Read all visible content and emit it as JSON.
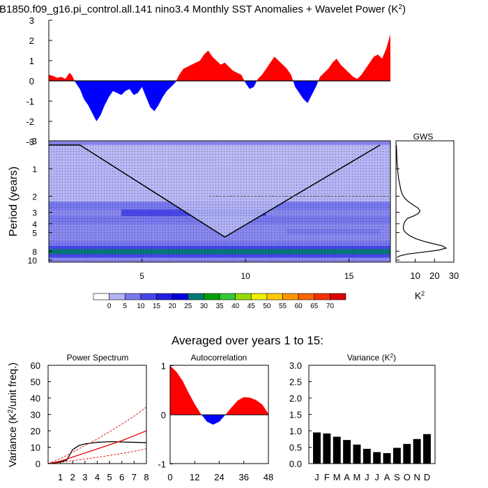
{
  "title": "B1850.f09_g16.pi_control.all.141 nino3.4 Monthly SST Anomalies + Wavelet Power (K",
  "title_sup": "2",
  "title_close": ")",
  "averaged_label": "Averaged over years 1 to 15:",
  "chart_data": [
    {
      "id": "sst_anomalies",
      "type": "area",
      "title": "nino3.4 Monthly SST Anomalies",
      "xlim": [
        0.5,
        17
      ],
      "ylim": [
        -3,
        3
      ],
      "yticks": [
        "3",
        "2",
        "1",
        "0",
        "-1",
        "-2",
        "-3"
      ],
      "colors": {
        "positive": "#ff0000",
        "negative": "#0000ff"
      },
      "x": [
        0.5,
        0.7,
        0.9,
        1.1,
        1.3,
        1.5,
        1.6,
        1.8,
        2.0,
        2.2,
        2.4,
        2.6,
        2.8,
        3.0,
        3.2,
        3.4,
        3.6,
        3.8,
        4.0,
        4.2,
        4.4,
        4.6,
        4.8,
        5.0,
        5.2,
        5.4,
        5.6,
        5.8,
        6.0,
        6.2,
        6.4,
        6.6,
        6.8,
        7.0,
        7.2,
        7.4,
        7.6,
        7.8,
        8.0,
        8.2,
        8.4,
        8.6,
        8.8,
        9.0,
        9.2,
        9.4,
        9.6,
        9.8,
        10.0,
        10.2,
        10.4,
        10.6,
        10.8,
        11.0,
        11.2,
        11.4,
        11.6,
        11.8,
        12.0,
        12.2,
        12.4,
        12.6,
        12.8,
        13.0,
        13.2,
        13.4,
        13.6,
        13.8,
        14.0,
        14.2,
        14.4,
        14.6,
        14.8,
        15.0,
        15.2,
        15.4,
        15.6,
        15.8,
        16.0,
        16.2,
        16.4,
        16.6,
        16.8,
        17.0
      ],
      "values": [
        0.3,
        0.25,
        0.15,
        0.2,
        0.1,
        0.4,
        0.3,
        -0.1,
        -0.4,
        -0.9,
        -1.2,
        -1.6,
        -2.0,
        -1.7,
        -1.2,
        -0.8,
        -0.5,
        -0.6,
        -0.7,
        -0.5,
        -0.4,
        -0.7,
        -0.6,
        -0.3,
        -0.8,
        -1.3,
        -1.5,
        -1.2,
        -0.8,
        -0.5,
        -0.3,
        -0.1,
        0.3,
        0.6,
        0.7,
        0.8,
        0.9,
        1.0,
        1.3,
        1.5,
        1.2,
        1.0,
        0.8,
        0.9,
        0.7,
        0.5,
        0.4,
        0.3,
        -0.1,
        -0.4,
        -0.3,
        0.1,
        0.3,
        0.6,
        0.9,
        1.2,
        1.0,
        0.8,
        0.6,
        0.3,
        -0.3,
        -0.6,
        -0.9,
        -1.1,
        -0.7,
        -0.3,
        0.2,
        0.4,
        0.6,
        0.9,
        1.1,
        0.8,
        0.6,
        0.4,
        0.2,
        0.1,
        0.3,
        0.6,
        0.9,
        1.2,
        1.3,
        1.1,
        1.6,
        2.3
      ]
    },
    {
      "id": "wavelet_power",
      "type": "heatmap",
      "ylabel": "Period (years)",
      "xlim": [
        0.5,
        17
      ],
      "xticks": [
        "5",
        "10",
        "15"
      ],
      "ytick_values": [
        1,
        2,
        3,
        4,
        5,
        8,
        10
      ],
      "ytick_labels": [
        "1",
        "2",
        "3",
        "4",
        "5",
        "8",
        "10"
      ],
      "y_top_label": "-3",
      "cone_of_influence": {
        "x": [
          0.5,
          2.0,
          9.0,
          16.5
        ],
        "period": [
          0.55,
          0.55,
          5.6,
          0.55
        ]
      },
      "bands": [
        {
          "period": [
            0.55,
            2.3
          ],
          "level": 5
        },
        {
          "period": [
            2.3,
            2.8
          ],
          "level": 10
        },
        {
          "period": [
            2.8,
            3.3
          ],
          "level": 15,
          "x": [
            4.0,
            11.0
          ]
        },
        {
          "period": [
            3.3,
            4.0
          ],
          "level": 10
        },
        {
          "period": [
            4.6,
            5.2
          ],
          "level": 10,
          "x": [
            12.0,
            16.5
          ]
        },
        {
          "period": [
            6.2,
            7.0
          ],
          "level": 10
        },
        {
          "period": [
            7.0,
            7.6
          ],
          "level": 15
        },
        {
          "period": [
            7.6,
            8.6
          ],
          "level": 30
        },
        {
          "period": [
            8.6,
            9.4
          ],
          "level": 15
        }
      ],
      "colorbar": {
        "levels": [
          "0",
          "5",
          "10",
          "15",
          "20",
          "25",
          "30",
          "35",
          "40",
          "45",
          "50",
          "55",
          "60",
          "65",
          "70"
        ],
        "colors": [
          "#ffffff",
          "#b4b4f5",
          "#7878ee",
          "#4646ea",
          "#1e1ee6",
          "#0000d8",
          "#007878",
          "#00a000",
          "#32c832",
          "#96dc00",
          "#f0f000",
          "#ffc800",
          "#ff9600",
          "#ff6400",
          "#f03200",
          "#dc0000"
        ]
      }
    },
    {
      "id": "gws",
      "type": "line",
      "title": "GWS",
      "xlabel": "K",
      "xlabel_sup": "2",
      "xlim": [
        0,
        30
      ],
      "xticks": [
        "10",
        "20",
        "30"
      ],
      "x": [
        0.2,
        0.4,
        0.6,
        1.0,
        1.4,
        2.0,
        2.5,
        3.2,
        4.5,
        6.5,
        9.0,
        11.5,
        12.5,
        11.5,
        9.0,
        6.0,
        4.5,
        4.0,
        3.8,
        4.0,
        5.0,
        7.0,
        10.0,
        14.0,
        19.0,
        24.0,
        26.0,
        22.0,
        14.0,
        6.0,
        2.0,
        0.5
      ],
      "period": [
        0.55,
        0.7,
        0.9,
        1.1,
        1.3,
        1.5,
        1.7,
        1.9,
        2.1,
        2.3,
        2.5,
        2.7,
        2.9,
        3.1,
        3.3,
        3.5,
        3.8,
        4.1,
        4.4,
        4.7,
        5.0,
        5.4,
        5.8,
        6.2,
        6.6,
        7.0,
        7.4,
        7.8,
        8.2,
        8.6,
        9.0,
        9.4
      ]
    },
    {
      "id": "power_spectrum",
      "type": "line",
      "title": "Power Spectrum",
      "ylabel": "Variance (K",
      "ylabel_sup": "2",
      "ylabel_close": "/unit freq.)",
      "xlim": [
        0,
        8
      ],
      "ylim": [
        0,
        60
      ],
      "xticks": [
        "1",
        "2",
        "3",
        "4",
        "5",
        "6",
        "7",
        "8"
      ],
      "yticks": [
        "0",
        "10",
        "20",
        "30",
        "40",
        "50",
        "60"
      ],
      "series": [
        {
          "name": "spectrum",
          "color": "#000000",
          "x": [
            0,
            0.5,
            1,
            1.5,
            2,
            2.5,
            3,
            3.5,
            4,
            4.5,
            5,
            6,
            7,
            8
          ],
          "values": [
            0,
            0.3,
            1.0,
            2.0,
            8.5,
            11.0,
            12.0,
            12.5,
            13.0,
            13.2,
            13.4,
            13.2,
            13.0,
            12.8
          ]
        },
        {
          "name": "red noise",
          "color": "#e00000",
          "x": [
            0,
            1,
            2,
            3,
            4,
            5,
            6,
            7,
            8
          ],
          "values": [
            0,
            1.5,
            4.0,
            6.5,
            9.0,
            11.5,
            14.0,
            17.0,
            20.0
          ]
        },
        {
          "name": "upper bound",
          "color": "#e00000",
          "dashed": true,
          "x": [
            0,
            1,
            2,
            3,
            4,
            5,
            6,
            7,
            8
          ],
          "values": [
            0,
            3.0,
            7.0,
            11.0,
            15.0,
            19.5,
            24.0,
            29.0,
            34.5
          ]
        },
        {
          "name": "lower bound",
          "color": "#e00000",
          "dashed": true,
          "x": [
            0,
            1,
            2,
            3,
            4,
            5,
            6,
            7,
            8
          ],
          "values": [
            0,
            0.7,
            1.8,
            2.8,
            3.8,
            5.0,
            6.2,
            7.5,
            9.0
          ]
        }
      ]
    },
    {
      "id": "autocorrelation",
      "type": "area",
      "title": "Autocorrelation",
      "xlim": [
        0,
        48
      ],
      "ylim": [
        -1,
        1
      ],
      "xticks": [
        "0",
        "12",
        "24",
        "36",
        "48"
      ],
      "yticks": [
        "1",
        "0",
        "-1"
      ],
      "colors": {
        "positive": "#ff0000",
        "negative": "#0000ff"
      },
      "x": [
        0,
        3,
        6,
        9,
        12,
        15,
        18,
        21,
        24,
        27,
        30,
        33,
        36,
        39,
        42,
        45,
        48
      ],
      "values": [
        1.0,
        0.88,
        0.7,
        0.45,
        0.22,
        0.02,
        -0.14,
        -0.2,
        -0.14,
        0.0,
        0.15,
        0.29,
        0.36,
        0.35,
        0.3,
        0.21,
        0.02
      ]
    },
    {
      "id": "monthly_variance",
      "type": "bar",
      "title": "Variance (K",
      "title_sup": "2",
      "title_close": ")",
      "ylim": [
        0,
        3
      ],
      "yticks": [
        "0.0",
        "0.5",
        "1.0",
        "1.5",
        "2.0",
        "2.5",
        "3.0"
      ],
      "categories": [
        "J",
        "F",
        "M",
        "A",
        "M",
        "J",
        "J",
        "A",
        "S",
        "O",
        "N",
        "D"
      ],
      "values": [
        0.95,
        0.92,
        0.82,
        0.72,
        0.58,
        0.45,
        0.35,
        0.32,
        0.48,
        0.6,
        0.75,
        0.9
      ],
      "color": "#000000"
    }
  ]
}
